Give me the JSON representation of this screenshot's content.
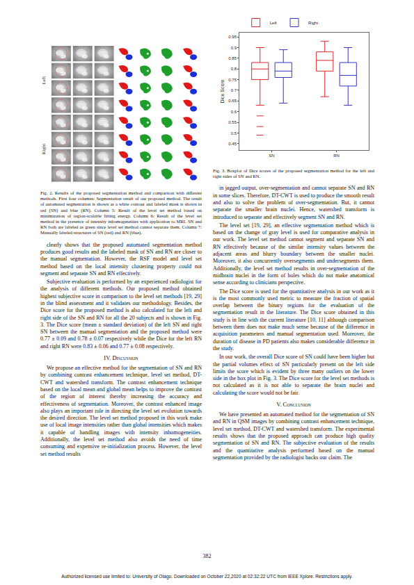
{
  "chart_data": {
    "type": "box",
    "y_label": "Dice Score",
    "categories": [
      "SN",
      "RN"
    ],
    "series": [
      {
        "name": "Left",
        "color": "#e3262b",
        "lower": [
          0.63,
          0.67
        ],
        "q1": [
          0.75,
          0.79
        ],
        "median": [
          0.8,
          0.84
        ],
        "q3": [
          0.83,
          0.88
        ],
        "upper": [
          0.9,
          0.93
        ],
        "outliers": [
          [
            0.58,
            0.53,
            0.49
          ],
          []
        ]
      },
      {
        "name": "Right",
        "color": "#3535c4",
        "lower": [
          0.64,
          0.63
        ],
        "q1": [
          0.76,
          0.72
        ],
        "median": [
          0.79,
          0.77
        ],
        "q3": [
          0.83,
          0.83
        ],
        "upper": [
          0.89,
          0.9
        ],
        "outliers": [
          [],
          []
        ]
      }
    ],
    "ylim": [
      0.42,
      0.97
    ],
    "yticks": [
      0.45,
      0.5,
      0.55,
      0.6,
      0.65,
      0.7,
      0.75,
      0.8,
      0.85,
      0.9,
      0.95
    ],
    "grid": false,
    "legend": "top"
  },
  "figure2": {
    "row_labels": [
      "Left",
      "Right"
    ],
    "caption": "Fig. 2. Results of the proposed segmentation method and comparison with different methods. First four columns: Segmentation result of our proposed method. The result of automated segmentation is shown as a white contour and labeled mask is shown in red (SN) and blue (RN). Column 5: Result of the level set method based on minimization of region-scalable fitting energy. Column 6: Result of the level set method in the presence of intensity inhomogeneities with application to MRI. SN and RN both are labeled as green since level set method cannot separate them. Column 7: Manually labeled structures of SN (red) and RN (blue)."
  },
  "figure3": {
    "caption": "Fig. 3. Boxplot of Dice scores of the proposed segmentation method for the left and right sides of SN and RN."
  },
  "left_column": [
    {
      "kind": "p",
      "text": "clearly shows that the proposed automated segmentation method produces good results and the labeled mask of SN and RN are closer to the manual segmentation. However, the RSF model and level set method based on the local intensity clustering property could not segment and separate SN and RN effectively."
    },
    {
      "kind": "p",
      "text": "Subjective evaluation is performed by an experienced radiologist for the analysis of different methods. Our proposed method obtained highest subjective score in comparison to the level set methods [19, 29] in the blind assessment and it validates our methodology. Besides, the Dice score for the proposed method is also calculated for the left and right side of the SN and RN for all the 20 subjects and is shown in Fig. 3. The Dice score (mean ± standard deviation) of the left SN and right SN between the manual segmentation and the proposed method were 0.77 ± 0.09 and 0.78 ± 0.07 respectively while the Dice for the left RN and right RN were 0.83 ± 0.06 and 0.77 ± 0.08 respectively."
    },
    {
      "kind": "h",
      "text": "IV. Discussion"
    },
    {
      "kind": "p",
      "text": "We propose an effective method for the segmentation of SN and RN by combining contrast enhancement technique, level set method, DT-CWT and watershed transform. The contrast enhancement technique based on the local mean and global mean helps to improve the contrast of the region of interest thereby increasing the accuracy and effectiveness of segmentation. Moreover, the contrast enhanced image also plays an important role in directing the level set evolution towards the desired direction. The level set method proposed in this work make use of local image intensities rather than global intensities which makes it capable of handling images with intensity inhomogeneities. Additionally, the level set method also avoids the need of time consuming and expensive re-initialization process. However, the level set method results"
    }
  ],
  "right_column": [
    {
      "kind": "p",
      "text": "in jagged output, over-segmentation and cannot separate SN and RN in some slices. Therefore, DT-CWT is used to produce the smooth result and also to solve the problem of over-segmentation. But, it cannot separate the smaller brain nuclei. Hence, watershed transform is introduced to separate and effectively segment SN and RN."
    },
    {
      "kind": "p",
      "text": "The level set [19, 29], an effective segmentation method which is based on the change of gray level is used for comparative analysis in our work. The level set method cannot segment and separate SN and RN effectively because of the similar intensity values between the adjacent areas and blurry boundary between the smaller nuclei. Moreover, it also concurrently oversegments and undersegments them. Additionally, the level set method results in over-segmentation of the midbrain nuclei in the form of holes which do not make anatomical sense according to clinicians perspective."
    },
    {
      "kind": "p",
      "text": "The Dice score is used for the quantitative analysis in our work as it is the most commonly used metric to measure the fraction of spatial overlap between the binary regions for the evaluation of the segmentation result in the literature. The Dice score obtained in this study is in line with the current literature [10, 11] although comparison between them does not make much sense because of the difference in acquisition parameters and manual segmentation used. Moreover, the duration of disease in PD patients also makes considerable difference in the study."
    },
    {
      "kind": "p",
      "text": "In our work, the overall Dice score of SN could have been higher but the partial volumes effect of SN particularly present on the left side limits the score which is evident by three many outliers on the lower side in the box plot in Fig. 3. The Dice score for the level set methods is not calculated as it is not able to separate the brain nuclei and calculating the score would not be fair."
    },
    {
      "kind": "h",
      "text": "V. Conclusion"
    },
    {
      "kind": "p",
      "text": "We have presented an automated method for the segmentation of SN and RN in QSM images by combining contrast enhancement technique, level set method, DT-CWT and watershed transform. The experimental results shows that the proposed approach can produce high quality segmentation of SN and RN. The subjective evaluation of the results and the quantitative analysis performed based on the manual segmentation provided by the radiologist backs our claim. The"
    }
  ],
  "page_number": "382",
  "footer": "Authorized licensed use limited to: University of Otago. Downloaded on October 22,2020 at 02:32:22 UTC from IEEE Xplore. Restrictions apply."
}
